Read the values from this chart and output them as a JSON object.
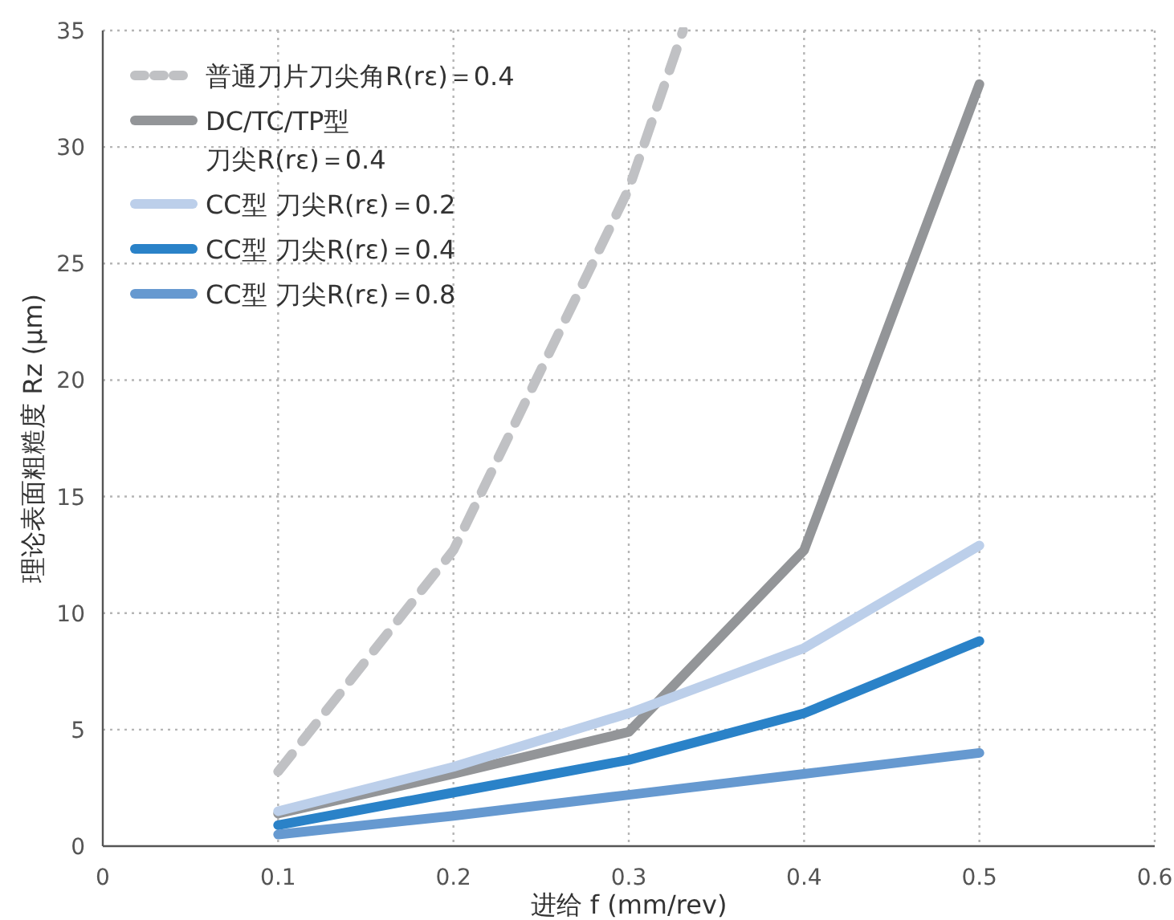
{
  "chart_data": {
    "type": "line",
    "xlabel": "进给 f (mm/rev)",
    "ylabel": "理论表面粗糙度 Rz (μm)",
    "xlim": [
      0,
      0.6
    ],
    "ylim": [
      0,
      35
    ],
    "xticks": [
      0,
      0.1,
      0.2,
      0.3,
      0.4,
      0.5,
      0.6
    ],
    "yticks": [
      0,
      5,
      10,
      15,
      20,
      25,
      30,
      35
    ],
    "grid": true,
    "legend": "top left",
    "marker": "none",
    "series": [
      {
        "name": "普通刀片刀尖角R(rε)＝0.4",
        "color": "#c0c1c4",
        "line_style": "dashed",
        "x": [
          0.1,
          0.2,
          0.3,
          0.331
        ],
        "values": [
          3.2,
          12.7,
          28.2,
          35
        ]
      },
      {
        "name": "DC/TC/TP型刀尖R(rε)＝0.4",
        "color": "#939598",
        "line_style": "solid",
        "x": [
          0.1,
          0.2,
          0.3,
          0.4,
          0.5
        ],
        "values": [
          1.4,
          3.1,
          4.9,
          12.7,
          32.7
        ]
      },
      {
        "name": "CC型 刀尖R(rε)＝0.2",
        "color": "#bccfea",
        "line_style": "solid",
        "x": [
          0.1,
          0.2,
          0.3,
          0.4,
          0.5
        ],
        "values": [
          1.5,
          3.4,
          5.7,
          8.5,
          12.9
        ]
      },
      {
        "name": "CC型 刀尖R(rε)＝0.4",
        "color": "#2a82c8",
        "line_style": "solid",
        "x": [
          0.1,
          0.2,
          0.3,
          0.4,
          0.5
        ],
        "values": [
          0.9,
          2.3,
          3.7,
          5.7,
          8.8
        ]
      },
      {
        "name": "CC型 刀尖R(rε)＝0.8",
        "color": "#6699d0",
        "line_style": "solid",
        "x": [
          0.1,
          0.2,
          0.3,
          0.4,
          0.5
        ],
        "values": [
          0.5,
          1.3,
          2.2,
          3.1,
          4.0
        ]
      }
    ]
  }
}
